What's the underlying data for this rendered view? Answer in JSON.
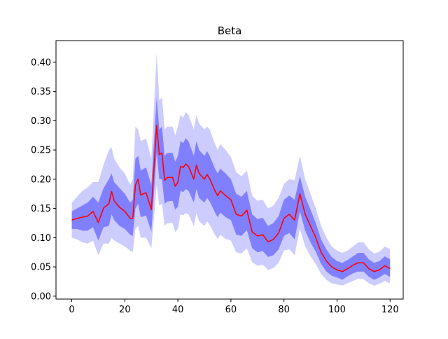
{
  "chart_data": {
    "type": "line",
    "title": "Beta",
    "xlabel": "",
    "ylabel": "",
    "xlim": [
      -5.95,
      124.95
    ],
    "ylim": [
      -0.005,
      0.437
    ],
    "x_ticks": [
      0,
      20,
      40,
      60,
      80,
      100,
      120
    ],
    "x_tick_labels": [
      "0",
      "20",
      "40",
      "60",
      "80",
      "100",
      "120"
    ],
    "y_ticks": [
      0.0,
      0.05,
      0.1,
      0.15,
      0.2,
      0.25,
      0.3,
      0.35,
      0.4
    ],
    "y_tick_labels": [
      "0.00",
      "0.05",
      "0.10",
      "0.15",
      "0.20",
      "0.25",
      "0.30",
      "0.35",
      "0.40"
    ],
    "grid": false,
    "colors": {
      "median_line": "#ff0000",
      "inner_band": "#8080ff",
      "outer_band": "#ccccff"
    },
    "x": [
      0,
      2,
      4,
      6,
      8,
      10,
      12,
      14,
      15,
      16,
      18,
      20,
      22,
      23,
      24,
      25,
      26,
      28,
      30,
      32,
      33,
      34,
      35,
      36,
      38,
      39,
      40,
      41,
      42,
      43,
      44,
      46,
      47,
      48,
      50,
      51,
      52,
      54,
      55,
      56,
      58,
      60,
      62,
      64,
      66,
      68,
      70,
      72,
      74,
      76,
      78,
      80,
      82,
      84,
      86,
      88,
      90,
      92,
      94,
      96,
      98,
      100,
      102,
      104,
      106,
      108,
      110,
      112,
      114,
      116,
      118,
      120
    ],
    "series": [
      {
        "role": "median",
        "values": [
          0.13,
          0.133,
          0.135,
          0.137,
          0.145,
          0.126,
          0.151,
          0.158,
          0.179,
          0.163,
          0.152,
          0.145,
          0.133,
          0.133,
          0.19,
          0.2,
          0.173,
          0.177,
          0.148,
          0.292,
          0.242,
          0.245,
          0.198,
          0.203,
          0.203,
          0.188,
          0.195,
          0.222,
          0.22,
          0.226,
          0.222,
          0.2,
          0.224,
          0.21,
          0.2,
          0.208,
          0.201,
          0.18,
          0.172,
          0.18,
          0.172,
          0.165,
          0.14,
          0.137,
          0.147,
          0.11,
          0.103,
          0.105,
          0.093,
          0.097,
          0.108,
          0.133,
          0.14,
          0.13,
          0.175,
          0.14,
          0.12,
          0.1,
          0.075,
          0.06,
          0.05,
          0.045,
          0.042,
          0.047,
          0.053,
          0.057,
          0.057,
          0.047,
          0.042,
          0.045,
          0.052,
          0.047
        ]
      },
      {
        "role": "inner_band_upper",
        "values": [
          0.145,
          0.15,
          0.155,
          0.16,
          0.17,
          0.16,
          0.185,
          0.2,
          0.21,
          0.195,
          0.185,
          0.175,
          0.16,
          0.165,
          0.235,
          0.24,
          0.215,
          0.22,
          0.19,
          0.34,
          0.285,
          0.29,
          0.24,
          0.245,
          0.245,
          0.23,
          0.24,
          0.265,
          0.262,
          0.27,
          0.265,
          0.24,
          0.265,
          0.25,
          0.24,
          0.248,
          0.24,
          0.218,
          0.21,
          0.218,
          0.21,
          0.2,
          0.175,
          0.17,
          0.18,
          0.14,
          0.132,
          0.134,
          0.12,
          0.125,
          0.137,
          0.165,
          0.172,
          0.165,
          0.205,
          0.17,
          0.148,
          0.125,
          0.097,
          0.08,
          0.067,
          0.06,
          0.057,
          0.062,
          0.068,
          0.074,
          0.074,
          0.063,
          0.057,
          0.06,
          0.068,
          0.063
        ]
      },
      {
        "role": "inner_band_lower",
        "values": [
          0.115,
          0.115,
          0.112,
          0.112,
          0.118,
          0.095,
          0.118,
          0.12,
          0.14,
          0.13,
          0.12,
          0.115,
          0.105,
          0.103,
          0.15,
          0.158,
          0.135,
          0.138,
          0.11,
          0.245,
          0.2,
          0.2,
          0.158,
          0.162,
          0.163,
          0.148,
          0.153,
          0.18,
          0.178,
          0.183,
          0.18,
          0.16,
          0.183,
          0.168,
          0.16,
          0.168,
          0.162,
          0.143,
          0.135,
          0.143,
          0.135,
          0.13,
          0.105,
          0.103,
          0.113,
          0.082,
          0.075,
          0.077,
          0.067,
          0.07,
          0.08,
          0.103,
          0.108,
          0.097,
          0.145,
          0.112,
          0.092,
          0.076,
          0.055,
          0.042,
          0.035,
          0.032,
          0.028,
          0.034,
          0.039,
          0.042,
          0.042,
          0.033,
          0.028,
          0.032,
          0.038,
          0.033
        ]
      },
      {
        "role": "outer_band_upper",
        "values": [
          0.16,
          0.17,
          0.18,
          0.186,
          0.195,
          0.195,
          0.225,
          0.25,
          0.255,
          0.235,
          0.22,
          0.21,
          0.19,
          0.2,
          0.29,
          0.285,
          0.265,
          0.27,
          0.235,
          0.415,
          0.335,
          0.34,
          0.285,
          0.29,
          0.29,
          0.275,
          0.29,
          0.31,
          0.305,
          0.315,
          0.31,
          0.285,
          0.31,
          0.295,
          0.285,
          0.29,
          0.285,
          0.26,
          0.25,
          0.26,
          0.25,
          0.238,
          0.212,
          0.205,
          0.215,
          0.172,
          0.163,
          0.165,
          0.15,
          0.155,
          0.168,
          0.192,
          0.2,
          0.198,
          0.24,
          0.2,
          0.175,
          0.15,
          0.12,
          0.1,
          0.085,
          0.078,
          0.074,
          0.078,
          0.085,
          0.092,
          0.092,
          0.08,
          0.073,
          0.076,
          0.085,
          0.08
        ]
      },
      {
        "role": "outer_band_lower",
        "values": [
          0.1,
          0.097,
          0.092,
          0.09,
          0.095,
          0.07,
          0.09,
          0.09,
          0.1,
          0.095,
          0.09,
          0.085,
          0.078,
          0.075,
          0.115,
          0.12,
          0.1,
          0.1,
          0.082,
          0.19,
          0.155,
          0.158,
          0.12,
          0.125,
          0.125,
          0.11,
          0.115,
          0.14,
          0.138,
          0.142,
          0.14,
          0.12,
          0.142,
          0.128,
          0.12,
          0.128,
          0.122,
          0.105,
          0.098,
          0.105,
          0.098,
          0.095,
          0.075,
          0.073,
          0.082,
          0.058,
          0.052,
          0.054,
          0.045,
          0.048,
          0.057,
          0.078,
          0.08,
          0.07,
          0.115,
          0.085,
          0.068,
          0.055,
          0.038,
          0.028,
          0.022,
          0.02,
          0.018,
          0.022,
          0.026,
          0.03,
          0.029,
          0.022,
          0.018,
          0.021,
          0.026,
          0.022
        ]
      }
    ]
  }
}
